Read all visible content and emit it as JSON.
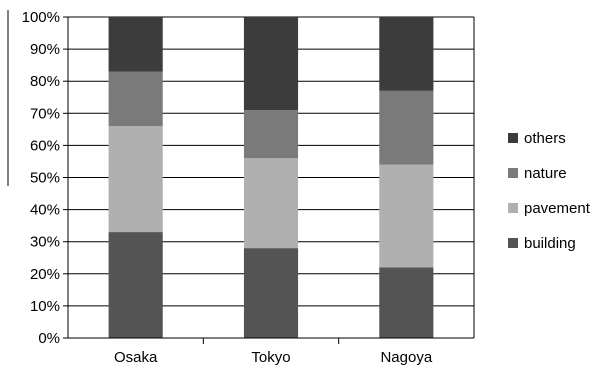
{
  "chart_data": {
    "type": "bar",
    "stacked": true,
    "percent": true,
    "categories": [
      "Osaka",
      "Tokyo",
      "Nagoya"
    ],
    "series": [
      {
        "name": "building",
        "values": [
          33,
          28,
          22
        ],
        "color": "#545454"
      },
      {
        "name": "pavement",
        "values": [
          33,
          28,
          32
        ],
        "color": "#b0b0b0"
      },
      {
        "name": "nature",
        "values": [
          17,
          15,
          23
        ],
        "color": "#7a7a7a"
      },
      {
        "name": "others",
        "values": [
          17,
          29,
          23
        ],
        "color": "#3c3c3c"
      }
    ],
    "yticks": [
      "0%",
      "10%",
      "20%",
      "30%",
      "40%",
      "50%",
      "60%",
      "70%",
      "80%",
      "90%",
      "100%"
    ],
    "ylim": [
      0,
      100
    ],
    "grid": true,
    "legend_position": "right"
  }
}
